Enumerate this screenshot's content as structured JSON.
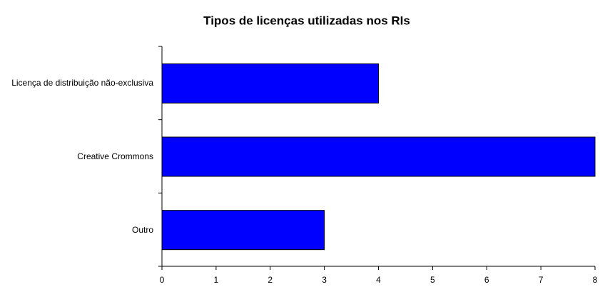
{
  "chart_data": {
    "type": "barh",
    "title": "Tipos de licenças utilizadas nos RIs",
    "categories": [
      "Licença de distribuição não-exclusiva",
      "Creative Crommons",
      "Outro"
    ],
    "values": [
      4,
      8,
      3
    ],
    "color": "#0000ff",
    "xlim": [
      0,
      8
    ],
    "xticks": [
      0,
      1,
      2,
      3,
      4,
      5,
      6,
      7,
      8
    ]
  }
}
